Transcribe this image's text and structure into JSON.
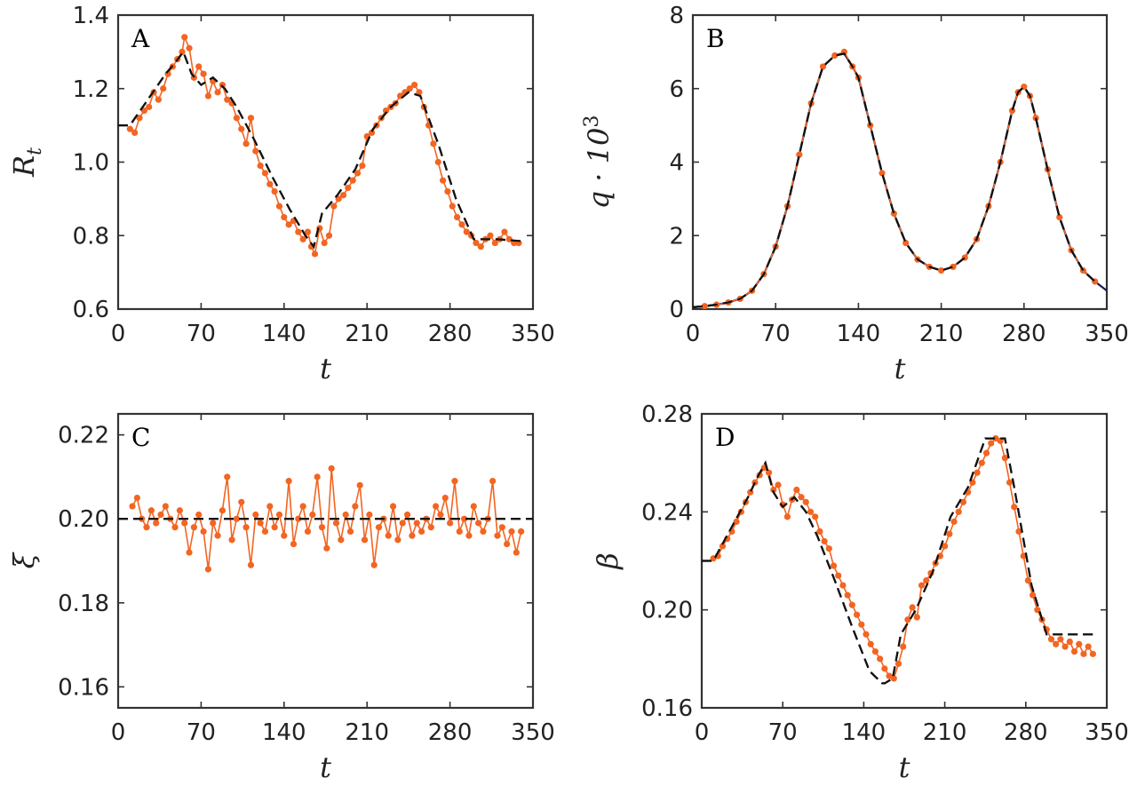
{
  "chart_data": [
    {
      "panel": "A",
      "type": "line",
      "xlabel": "t",
      "ylabel": "R",
      "ylabel_sub": "t",
      "xlim": [
        0,
        350
      ],
      "ylim": [
        0.6,
        1.4
      ],
      "xticks": [
        0,
        70,
        140,
        210,
        280,
        350
      ],
      "yticks": [
        0.6,
        0.8,
        1.0,
        1.2,
        1.4
      ],
      "ytick_labels": [
        "0.6",
        "0.8",
        "1.0",
        "1.2",
        "1.4"
      ],
      "series": [
        {
          "style": "dashed",
          "color": "#111111",
          "x": [
            0,
            10,
            25,
            40,
            48,
            55,
            62,
            70,
            80,
            90,
            100,
            115,
            130,
            145,
            158,
            165,
            172,
            185,
            200,
            215,
            230,
            245,
            255,
            270,
            285,
            300,
            320,
            340
          ],
          "y": [
            1.1,
            1.1,
            1.17,
            1.24,
            1.27,
            1.3,
            1.24,
            1.21,
            1.23,
            1.2,
            1.15,
            1.06,
            0.96,
            0.87,
            0.8,
            0.77,
            0.86,
            0.91,
            0.98,
            1.09,
            1.15,
            1.19,
            1.18,
            1.05,
            0.9,
            0.79,
            0.79,
            0.785
          ]
        },
        {
          "style": "markers-line",
          "color": "#f26522",
          "x": [
            10,
            14,
            18,
            22,
            26,
            30,
            34,
            38,
            42,
            46,
            50,
            54,
            56,
            60,
            64,
            68,
            72,
            76,
            80,
            84,
            88,
            92,
            96,
            100,
            104,
            108,
            112,
            116,
            120,
            124,
            128,
            132,
            136,
            140,
            144,
            148,
            152,
            156,
            160,
            163,
            166,
            170,
            174,
            178,
            182,
            186,
            190,
            194,
            198,
            202,
            206,
            210,
            214,
            218,
            222,
            226,
            230,
            234,
            238,
            242,
            246,
            250,
            254,
            258,
            262,
            266,
            270,
            274,
            278,
            282,
            286,
            290,
            294,
            298,
            302,
            306,
            310,
            314,
            318,
            322,
            326,
            330,
            334,
            338
          ],
          "y": [
            1.09,
            1.08,
            1.12,
            1.14,
            1.15,
            1.19,
            1.17,
            1.2,
            1.24,
            1.26,
            1.28,
            1.3,
            1.34,
            1.31,
            1.23,
            1.26,
            1.24,
            1.18,
            1.22,
            1.19,
            1.21,
            1.17,
            1.16,
            1.12,
            1.09,
            1.05,
            1.12,
            1.03,
            0.99,
            0.97,
            0.94,
            0.92,
            0.88,
            0.85,
            0.83,
            0.84,
            0.81,
            0.79,
            0.81,
            0.77,
            0.75,
            0.82,
            0.78,
            0.8,
            0.88,
            0.9,
            0.91,
            0.93,
            0.95,
            0.97,
            0.99,
            1.07,
            1.08,
            1.1,
            1.12,
            1.14,
            1.15,
            1.16,
            1.18,
            1.19,
            1.2,
            1.21,
            1.19,
            1.15,
            1.1,
            1.05,
            1.0,
            0.95,
            0.92,
            0.88,
            0.85,
            0.83,
            0.81,
            0.8,
            0.78,
            0.77,
            0.79,
            0.8,
            0.78,
            0.79,
            0.81,
            0.79,
            0.78,
            0.78
          ]
        }
      ]
    },
    {
      "panel": "B",
      "type": "line",
      "xlabel": "t",
      "ylabel": "q · 10",
      "ylabel_sup": "3",
      "xlim": [
        0,
        350
      ],
      "ylim": [
        0,
        8
      ],
      "xticks": [
        0,
        70,
        140,
        210,
        280,
        350
      ],
      "yticks": [
        0,
        2,
        4,
        6,
        8
      ],
      "ytick_labels": [
        "0",
        "2",
        "4",
        "6",
        "8"
      ],
      "series": [
        {
          "style": "solid",
          "color": "#1a1a4e",
          "x": [
            0,
            10,
            20,
            30,
            40,
            50,
            60,
            70,
            80,
            90,
            100,
            110,
            120,
            128,
            135,
            140,
            150,
            160,
            170,
            180,
            190,
            200,
            210,
            220,
            230,
            240,
            250,
            260,
            270,
            275,
            280,
            285,
            290,
            300,
            310,
            320,
            330,
            340,
            350
          ],
          "y": [
            0.05,
            0.08,
            0.12,
            0.18,
            0.28,
            0.5,
            0.95,
            1.7,
            2.8,
            4.2,
            5.6,
            6.6,
            6.9,
            6.95,
            6.6,
            6.3,
            5.0,
            3.7,
            2.6,
            1.8,
            1.35,
            1.15,
            1.05,
            1.15,
            1.4,
            1.9,
            2.8,
            4.0,
            5.4,
            5.9,
            6.05,
            5.8,
            5.2,
            3.8,
            2.5,
            1.6,
            1.05,
            0.75,
            0.5
          ]
        },
        {
          "style": "dashed",
          "color": "#111111",
          "x": [
            0,
            10,
            20,
            30,
            40,
            50,
            60,
            70,
            80,
            90,
            100,
            110,
            120,
            128,
            135,
            140,
            150,
            160,
            170,
            180,
            190,
            200,
            210,
            220,
            230,
            240,
            250,
            260,
            270,
            275,
            280,
            285,
            290,
            300,
            310,
            320,
            330,
            340
          ],
          "y": [
            0.05,
            0.08,
            0.12,
            0.18,
            0.28,
            0.5,
            0.95,
            1.7,
            2.8,
            4.2,
            5.6,
            6.6,
            6.9,
            6.95,
            6.6,
            6.3,
            5.0,
            3.7,
            2.6,
            1.8,
            1.35,
            1.15,
            1.05,
            1.15,
            1.4,
            1.9,
            2.8,
            4.0,
            5.4,
            5.9,
            6.05,
            5.8,
            5.2,
            3.8,
            2.5,
            1.6,
            1.05,
            0.75
          ]
        },
        {
          "style": "markers-line",
          "color": "#f26522",
          "x": [
            10,
            20,
            30,
            40,
            50,
            60,
            70,
            80,
            90,
            100,
            110,
            120,
            128,
            135,
            140,
            150,
            160,
            170,
            180,
            190,
            200,
            210,
            220,
            230,
            240,
            250,
            260,
            270,
            275,
            280,
            285,
            290,
            300,
            310,
            320,
            330,
            340
          ],
          "y": [
            0.08,
            0.12,
            0.18,
            0.28,
            0.5,
            0.95,
            1.7,
            2.8,
            4.2,
            5.6,
            6.6,
            6.9,
            7.0,
            6.6,
            6.3,
            5.0,
            3.7,
            2.6,
            1.8,
            1.35,
            1.15,
            1.05,
            1.15,
            1.4,
            1.9,
            2.8,
            4.0,
            5.4,
            5.9,
            6.05,
            5.8,
            5.2,
            3.8,
            2.5,
            1.6,
            1.05,
            0.75
          ]
        }
      ]
    },
    {
      "panel": "C",
      "type": "line",
      "xlabel": "t",
      "ylabel": "ξ",
      "xlim": [
        0,
        350
      ],
      "ylim": [
        0.155,
        0.225
      ],
      "xticks": [
        0,
        70,
        140,
        210,
        280,
        350
      ],
      "yticks": [
        0.16,
        0.18,
        0.2,
        0.22
      ],
      "ytick_labels": [
        "0.16",
        "0.18",
        "0.20",
        "0.22"
      ],
      "series": [
        {
          "style": "dashed",
          "color": "#111111",
          "x": [
            0,
            350
          ],
          "y": [
            0.2,
            0.2
          ]
        },
        {
          "style": "markers-line",
          "color": "#f26522",
          "x": [
            12,
            16,
            20,
            24,
            28,
            32,
            36,
            40,
            44,
            48,
            52,
            56,
            60,
            64,
            68,
            72,
            76,
            80,
            84,
            88,
            92,
            96,
            100,
            104,
            108,
            112,
            116,
            120,
            124,
            128,
            132,
            136,
            140,
            144,
            148,
            152,
            156,
            160,
            164,
            168,
            172,
            176,
            180,
            184,
            188,
            192,
            196,
            200,
            204,
            208,
            212,
            216,
            220,
            224,
            228,
            232,
            236,
            240,
            244,
            248,
            252,
            256,
            260,
            264,
            268,
            272,
            276,
            280,
            284,
            288,
            292,
            296,
            300,
            304,
            308,
            312,
            316,
            320,
            324,
            328,
            332,
            336,
            340
          ],
          "y": [
            0.203,
            0.205,
            0.2,
            0.198,
            0.202,
            0.199,
            0.201,
            0.203,
            0.2,
            0.198,
            0.202,
            0.199,
            0.192,
            0.198,
            0.201,
            0.197,
            0.188,
            0.199,
            0.196,
            0.202,
            0.21,
            0.195,
            0.2,
            0.204,
            0.198,
            0.189,
            0.201,
            0.199,
            0.197,
            0.203,
            0.198,
            0.201,
            0.196,
            0.209,
            0.194,
            0.2,
            0.203,
            0.197,
            0.201,
            0.21,
            0.198,
            0.193,
            0.212,
            0.199,
            0.195,
            0.201,
            0.197,
            0.203,
            0.208,
            0.195,
            0.201,
            0.189,
            0.198,
            0.2,
            0.196,
            0.203,
            0.195,
            0.199,
            0.201,
            0.196,
            0.199,
            0.197,
            0.2,
            0.198,
            0.203,
            0.201,
            0.205,
            0.199,
            0.209,
            0.197,
            0.2,
            0.196,
            0.203,
            0.199,
            0.197,
            0.2,
            0.209,
            0.196,
            0.198,
            0.194,
            0.197,
            0.192,
            0.197
          ]
        }
      ]
    },
    {
      "panel": "D",
      "type": "line",
      "xlabel": "t",
      "ylabel": "β",
      "xlim": [
        0,
        350
      ],
      "ylim": [
        0.16,
        0.28
      ],
      "xticks": [
        0,
        70,
        140,
        210,
        280,
        350
      ],
      "yticks": [
        0.16,
        0.2,
        0.24,
        0.28
      ],
      "ytick_labels": [
        "0.16",
        "0.20",
        "0.24",
        "0.28"
      ],
      "series": [
        {
          "style": "dashed",
          "color": "#111111",
          "x": [
            0,
            10,
            25,
            40,
            48,
            55,
            62,
            70,
            80,
            90,
            100,
            115,
            130,
            145,
            156,
            158,
            165,
            172,
            185,
            200,
            215,
            230,
            245,
            255,
            262,
            270,
            285,
            298,
            300,
            320,
            340
          ],
          "y": [
            0.22,
            0.22,
            0.233,
            0.246,
            0.254,
            0.26,
            0.248,
            0.242,
            0.246,
            0.24,
            0.23,
            0.212,
            0.193,
            0.175,
            0.17,
            0.17,
            0.172,
            0.19,
            0.2,
            0.216,
            0.238,
            0.25,
            0.27,
            0.27,
            0.27,
            0.25,
            0.21,
            0.19,
            0.19,
            0.19,
            0.19
          ]
        },
        {
          "style": "markers-line",
          "color": "#f26522",
          "x": [
            10,
            14,
            18,
            22,
            26,
            30,
            34,
            38,
            42,
            46,
            50,
            54,
            58,
            62,
            66,
            70,
            74,
            78,
            82,
            86,
            90,
            94,
            98,
            102,
            106,
            110,
            114,
            118,
            122,
            126,
            130,
            134,
            138,
            142,
            146,
            150,
            154,
            158,
            162,
            166,
            170,
            174,
            178,
            182,
            186,
            190,
            194,
            198,
            202,
            206,
            210,
            214,
            218,
            222,
            226,
            230,
            234,
            238,
            242,
            246,
            250,
            254,
            258,
            262,
            266,
            270,
            274,
            278,
            282,
            286,
            290,
            294,
            298,
            302,
            306,
            310,
            314,
            318,
            322,
            326,
            330,
            334,
            338
          ],
          "y": [
            0.221,
            0.222,
            0.226,
            0.229,
            0.232,
            0.236,
            0.24,
            0.244,
            0.248,
            0.252,
            0.255,
            0.258,
            0.256,
            0.249,
            0.251,
            0.243,
            0.238,
            0.245,
            0.249,
            0.246,
            0.244,
            0.24,
            0.238,
            0.232,
            0.228,
            0.225,
            0.218,
            0.214,
            0.21,
            0.206,
            0.202,
            0.198,
            0.194,
            0.19,
            0.186,
            0.183,
            0.18,
            0.176,
            0.173,
            0.172,
            0.178,
            0.185,
            0.196,
            0.201,
            0.197,
            0.21,
            0.212,
            0.215,
            0.219,
            0.222,
            0.226,
            0.231,
            0.236,
            0.24,
            0.244,
            0.248,
            0.252,
            0.256,
            0.26,
            0.264,
            0.268,
            0.27,
            0.269,
            0.262,
            0.252,
            0.242,
            0.232,
            0.222,
            0.212,
            0.206,
            0.2,
            0.196,
            0.192,
            0.188,
            0.186,
            0.188,
            0.185,
            0.187,
            0.183,
            0.186,
            0.182,
            0.185,
            0.182
          ]
        }
      ]
    }
  ]
}
